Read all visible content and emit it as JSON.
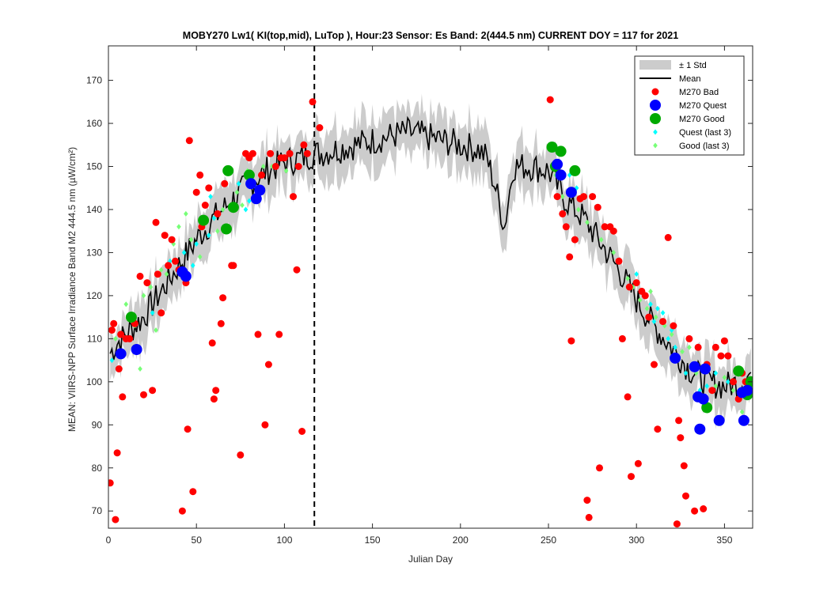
{
  "chart_data": {
    "type": "line",
    "title": "MOBY270   Lw1( KI(top,mid), LuTop ),    Hour:23 Sensor: Es Band: 2(444.5 nm)   CURRENT DOY = 117 for 2021",
    "xlabel": "Julian Day",
    "ylabel": "MEAN: VIIRS-NPP Surface Irradiance Band M2 444.5 nm (µW/cm²)",
    "xlim": [
      0,
      366
    ],
    "ylim": [
      66,
      178
    ],
    "xticks": [
      "0",
      "50",
      "100",
      "150",
      "200",
      "250",
      "300",
      "350"
    ],
    "yticks": [
      "70",
      "80",
      "90",
      "100",
      "110",
      "120",
      "130",
      "140",
      "150",
      "160",
      "170"
    ],
    "grid": false,
    "legend_position": "top-right",
    "current_doy": 117,
    "legend": [
      "± 1 Std",
      "Mean",
      "M270 Bad",
      "M270 Quest",
      "M270 Good",
      "Quest (last 3)",
      "Good (last 3)"
    ],
    "colors": {
      "std_band": "#cccccc",
      "mean": "#000000",
      "bad": "#ff0000",
      "quest": "#0000ff",
      "good": "#00aa00",
      "quest_last3": "#00ffff",
      "good_last3": "#77ff77"
    },
    "mean_anchors": {
      "x": [
        0,
        5,
        10,
        20,
        30,
        40,
        50,
        60,
        70,
        80,
        90,
        100,
        110,
        117,
        120,
        130,
        140,
        150,
        160,
        170,
        180,
        190,
        200,
        210,
        215,
        220,
        225,
        230,
        240,
        250,
        260,
        270,
        280,
        290,
        300,
        310,
        320,
        330,
        340,
        350,
        360,
        365
      ],
      "y": [
        106,
        109,
        111,
        115,
        121,
        127,
        133,
        138,
        142,
        146,
        149,
        151,
        152,
        153,
        153,
        154,
        155,
        156,
        157,
        158,
        157,
        156,
        155,
        154,
        152,
        145,
        136,
        150,
        150,
        149,
        142,
        138,
        132,
        126,
        119,
        113,
        108,
        103,
        100,
        99,
        100,
        102
      ]
    },
    "std_half_width": 5,
    "series": [
      {
        "name": "M270 Bad",
        "x": [
          1,
          2,
          3,
          5,
          6,
          8,
          10,
          12,
          15,
          18,
          20,
          22,
          25,
          27,
          28,
          30,
          32,
          34,
          36,
          38,
          40,
          42,
          44,
          45,
          46,
          48,
          50,
          52,
          53,
          55,
          57,
          59,
          60,
          61,
          62,
          64,
          65,
          66,
          70,
          71,
          75,
          78,
          80,
          82,
          85,
          87,
          89,
          91,
          92,
          95,
          97,
          98,
          100,
          103,
          105,
          107,
          108,
          110,
          111,
          113,
          116,
          4,
          7,
          120,
          251,
          255,
          258,
          260,
          262,
          263,
          265,
          268,
          270,
          272,
          273,
          275,
          278,
          279,
          282,
          285,
          287,
          290,
          292,
          295,
          296,
          297,
          300,
          301,
          303,
          305,
          307,
          310,
          312,
          315,
          318,
          321,
          323,
          324,
          325,
          327,
          328,
          330,
          333,
          335,
          338,
          340,
          343,
          345,
          348,
          350,
          352,
          355,
          358,
          360,
          362
        ],
        "y": [
          76.5,
          112,
          113.5,
          83.5,
          103,
          96.5,
          110,
          110,
          113.5,
          124.5,
          97,
          123,
          98,
          137,
          125,
          116,
          134,
          127,
          133,
          128,
          126,
          70,
          123,
          89,
          156,
          74.5,
          144,
          148,
          136,
          141,
          145,
          109,
          96,
          98,
          139,
          113.5,
          119.5,
          146,
          127,
          127,
          83,
          153,
          152,
          153,
          111,
          148,
          90,
          104,
          153,
          150,
          111,
          152,
          152,
          153,
          143,
          126,
          150,
          88.5,
          155,
          153,
          165,
          68,
          111,
          159,
          165.5,
          143,
          139,
          136,
          129,
          109.5,
          133,
          142.5,
          143,
          72.5,
          68.5,
          143,
          140.5,
          80,
          136,
          136,
          135,
          128,
          110,
          96.5,
          122,
          78,
          123,
          81,
          121,
          120,
          115,
          104,
          89,
          114,
          133.5,
          113,
          67,
          91,
          87,
          80.5,
          73.5,
          110,
          70,
          108,
          70.5,
          104,
          98,
          108,
          106,
          109.5,
          106,
          100,
          96,
          102,
          100
        ]
      },
      {
        "name": "M270 Quest",
        "x": [
          7,
          16,
          42,
          44,
          81,
          84,
          86,
          255,
          257,
          263,
          322,
          333,
          335,
          336,
          338,
          339,
          347,
          360,
          361,
          363
        ],
        "y": [
          106.5,
          107.5,
          125.5,
          124.5,
          146,
          142.5,
          144.5,
          150.5,
          148,
          144,
          105.5,
          103.5,
          96.5,
          89,
          96,
          103,
          91,
          97.5,
          91,
          98
        ]
      },
      {
        "name": "M270 Good",
        "x": [
          13,
          54,
          67,
          68,
          71,
          80,
          252,
          254,
          257,
          265,
          340,
          358,
          363,
          365
        ],
        "y": [
          115,
          137.5,
          135.5,
          149,
          140.5,
          148,
          154.5,
          150,
          153.5,
          149,
          94,
          102.5,
          97,
          100
        ]
      },
      {
        "name": "Quest (last 3)",
        "x": [
          2,
          12,
          25,
          35,
          43,
          48,
          50,
          53,
          57,
          58,
          60,
          74,
          78,
          80,
          87,
          256,
          262,
          266,
          300,
          305,
          308,
          310,
          312,
          315,
          318,
          320,
          322,
          325,
          328,
          332,
          336,
          340,
          345,
          352
        ],
        "y": [
          105,
          110,
          116,
          128,
          130,
          127,
          132,
          136,
          134,
          143,
          138,
          146,
          140,
          142,
          148,
          151,
          148,
          145,
          125,
          120,
          118,
          114,
          117,
          116,
          110,
          112,
          108,
          87,
          102,
          104,
          98,
          99,
          102,
          100
        ]
      },
      {
        "name": "Good (last 3)",
        "x": [
          4,
          10,
          15,
          18,
          20,
          24,
          27,
          30,
          33,
          37,
          40,
          44,
          47,
          52,
          55,
          62,
          65,
          73,
          76,
          79,
          84,
          88,
          93,
          97,
          101,
          254,
          258,
          267,
          272,
          280,
          287,
          290,
          295,
          298,
          302,
          306,
          308,
          311,
          316,
          320,
          326,
          330,
          334,
          339,
          345,
          350,
          355,
          360
        ],
        "y": [
          110,
          118,
          113,
          103,
          120,
          122,
          112,
          126,
          125,
          132,
          136,
          139,
          133,
          129,
          138,
          135,
          140,
          144,
          141,
          149,
          145,
          150,
          150,
          152,
          149,
          148,
          143,
          140,
          137,
          133,
          130,
          128,
          124,
          122,
          119,
          117,
          121,
          115,
          113,
          111,
          107,
          108,
          102,
          104,
          99,
          101,
          98,
          93
        ]
      }
    ]
  }
}
